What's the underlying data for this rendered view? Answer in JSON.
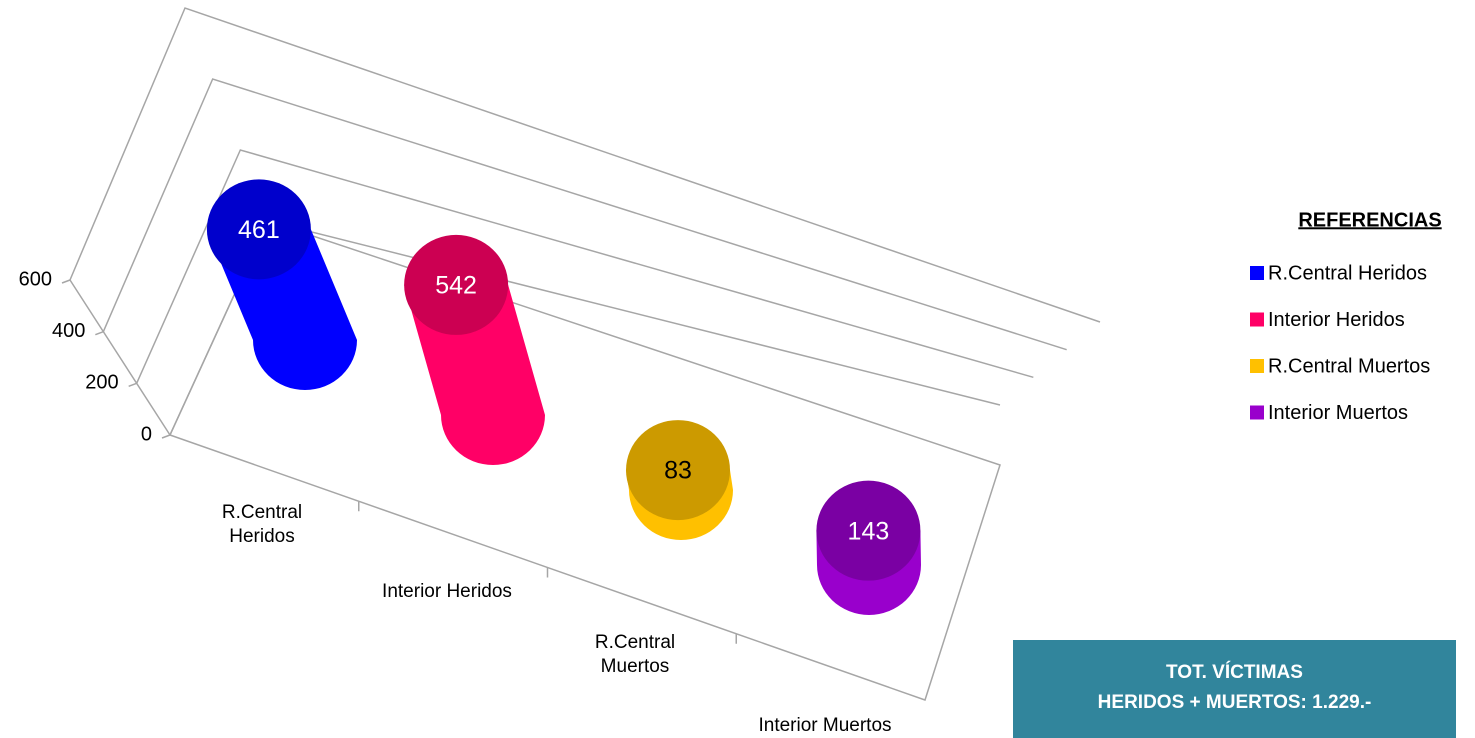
{
  "chart_data": {
    "type": "bar",
    "categories": [
      "R.Central Heridos",
      "Interior Heridos",
      "R.Central Muertos",
      "Interior Muertos"
    ],
    "values": [
      461,
      542,
      83,
      143
    ],
    "colors": [
      "#0000ff",
      "#ff0066",
      "#ffc000",
      "#9900cc"
    ],
    "ylim": [
      0,
      600
    ],
    "yticks": [
      0,
      200,
      400,
      600
    ],
    "grid": true,
    "legend": "right",
    "legend_title": "REFERENCIAS",
    "annotations": [
      "TOT. VÍCTIMAS",
      "HERIDOS + MUERTOS: 1.229.-"
    ]
  }
}
